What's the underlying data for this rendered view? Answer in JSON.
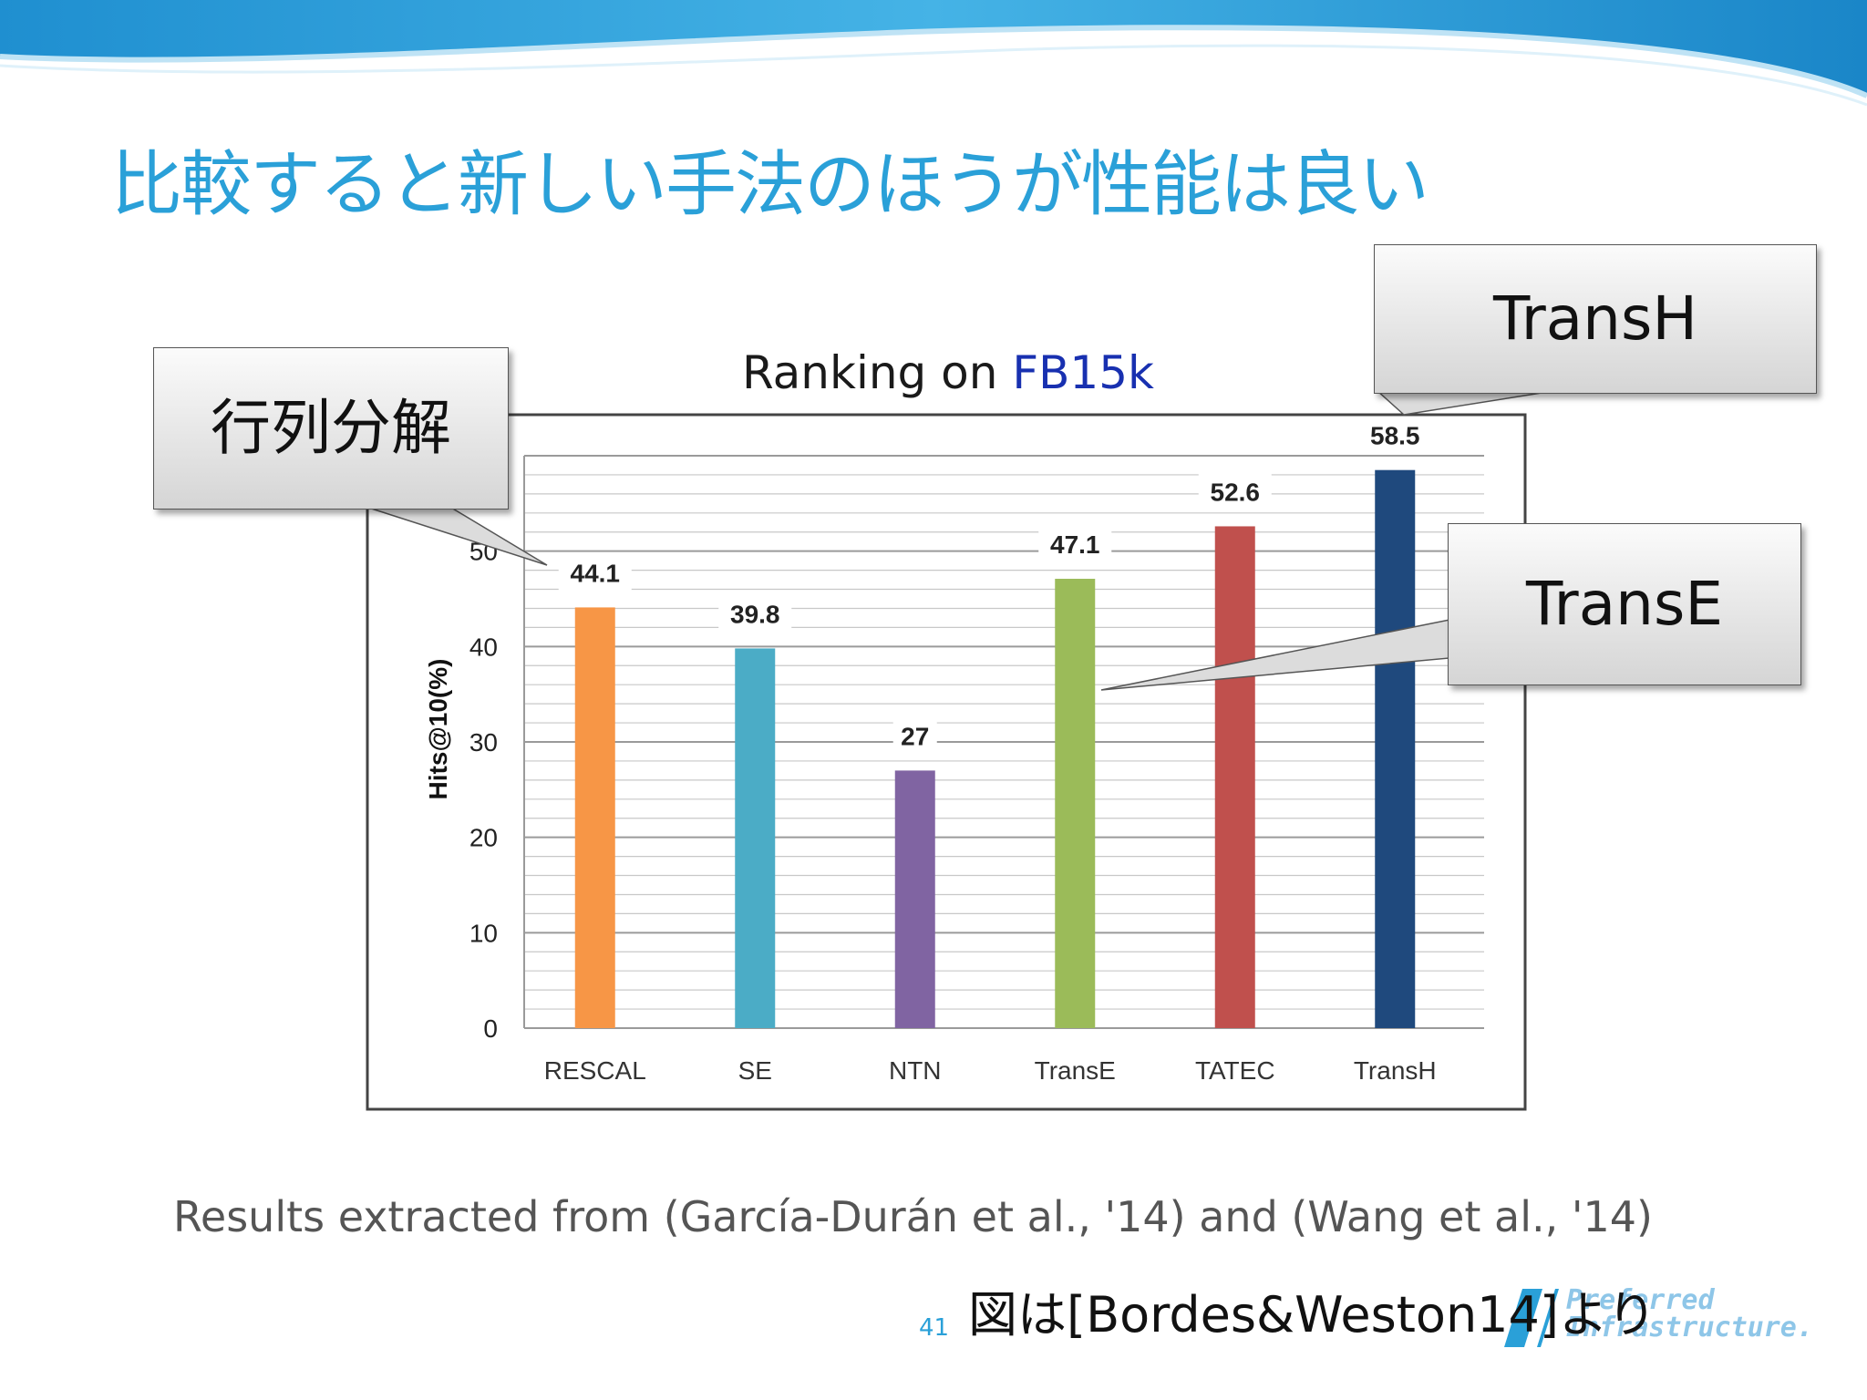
{
  "slide": {
    "title": "比較すると新しい手法のほうが性能は良い",
    "source_text": "Results extracted from (García-Durán et al., '14) and (Wang et al., '14)",
    "credit": "図は[Bordes&Weston14]より",
    "page_number": "41",
    "logo_line1": "Preferred",
    "logo_line2": "Infrastructure.",
    "accent_color": "#2aa0d8"
  },
  "callouts": {
    "matrix": "行列分解",
    "transh": "TransH",
    "transe": "TransE"
  },
  "chart_data": {
    "type": "bar",
    "title_part1": "Ranking on ",
    "title_part2": "FB15k",
    "ylabel": "Hits@10(%)",
    "xlabel": "",
    "ylim": [
      0,
      60
    ],
    "yticks": [
      0,
      10,
      20,
      30,
      40,
      50
    ],
    "categories": [
      "RESCAL",
      "SE",
      "NTN",
      "TransE",
      "TATEC",
      "TransH"
    ],
    "values": [
      44.1,
      39.8,
      27,
      47.1,
      52.6,
      58.5
    ],
    "value_labels": [
      "44.1",
      "39.8",
      "27",
      "47.1",
      "52.6",
      "58.5"
    ],
    "colors": [
      "#f79646",
      "#4bacc6",
      "#8064a2",
      "#9bbb59",
      "#c0504d",
      "#1f497d"
    ],
    "grid": true,
    "legend": "none"
  }
}
